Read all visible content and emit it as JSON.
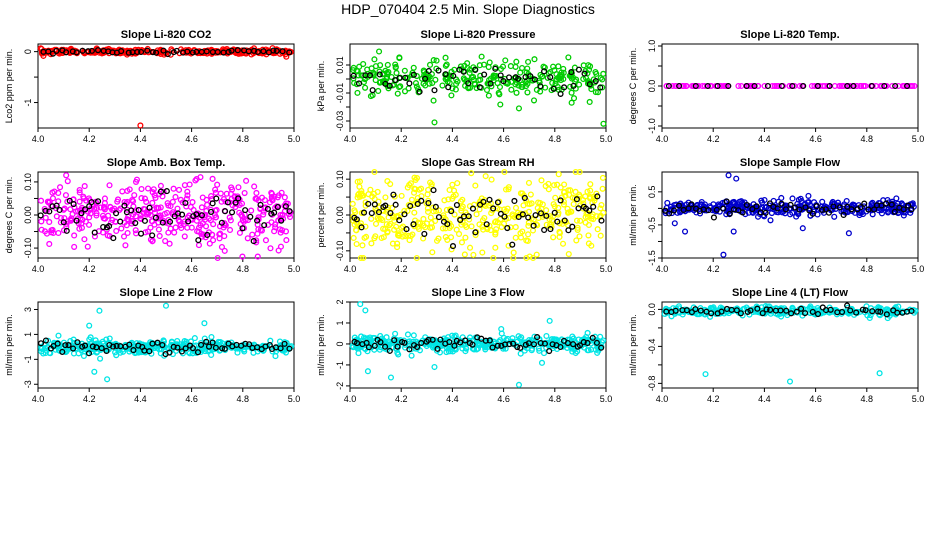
{
  "figure": {
    "title": "HDP_070404  2.5 Min. Slope Diagnostics"
  },
  "chart_data": [
    {
      "type": "scatter",
      "title": "Slope Li-820 CO2",
      "xlabel": "",
      "ylabel": "Lco2 ppm per min.",
      "xlim": [
        4.0,
        5.0
      ],
      "ylim": [
        -1.5,
        0.15
      ],
      "xticks": [
        4.0,
        4.2,
        4.4,
        4.6,
        4.8,
        5.0
      ],
      "xtick_labels": [
        "4.0",
        "4.2",
        "4.4",
        "4.6",
        "4.8",
        "5.0"
      ],
      "yticks": [
        -1,
        -0.5,
        0
      ],
      "ytick_labels": [
        "-1",
        "",
        "0"
      ],
      "color": "#ff0000",
      "pattern": {
        "center": 0.0,
        "spread": 0.03,
        "outliers": [
          [
            4.4,
            -1.45
          ],
          [
            4.05,
            -0.05
          ],
          [
            4.97,
            -0.1
          ]
        ],
        "n": 300
      },
      "overlay_color": "#000000"
    },
    {
      "type": "scatter",
      "title": "Slope Li-820 Pressure",
      "xlabel": "",
      "ylabel": "kPa per min.",
      "xlim": [
        4.0,
        5.0
      ],
      "ylim": [
        -0.035,
        0.025
      ],
      "xticks": [
        4.0,
        4.2,
        4.4,
        4.6,
        4.8,
        5.0
      ],
      "xtick_labels": [
        "4.0",
        "4.2",
        "4.4",
        "4.6",
        "4.8",
        "5.0"
      ],
      "yticks": [
        -0.03,
        -0.02,
        -0.01,
        0.0,
        0.01
      ],
      "ytick_labels": [
        "-0.03",
        "",
        "-0.01",
        "",
        "0.01"
      ],
      "color": "#00cc00",
      "pattern": {
        "center": 0.0,
        "spread": 0.008,
        "outliers": [
          [
            4.33,
            -0.031
          ],
          [
            4.66,
            -0.021
          ],
          [
            4.99,
            -0.032
          ]
        ],
        "n": 300
      },
      "overlay_color": "#000000"
    },
    {
      "type": "scatter",
      "title": "Slope Li-820 Temp.",
      "xlabel": "",
      "ylabel": "degrees C per min.",
      "xlim": [
        4.0,
        5.0
      ],
      "ylim": [
        -1.05,
        1.05
      ],
      "xticks": [
        4.0,
        4.2,
        4.4,
        4.6,
        4.8,
        5.0
      ],
      "xtick_labels": [
        "4.0",
        "4.2",
        "4.4",
        "4.6",
        "4.8",
        "5.0"
      ],
      "yticks": [
        -1.0,
        -0.5,
        0.0,
        0.5,
        1.0
      ],
      "ytick_labels": [
        "-1.0",
        "",
        "0.0",
        "",
        "1.0"
      ],
      "color": "#ff00ff",
      "pattern": {
        "center": 0.0,
        "spread": 0.0,
        "outliers": [],
        "n": 120
      },
      "overlay_color": "#000000"
    },
    {
      "type": "scatter",
      "title": "Slope Amb. Box Temp.",
      "xlabel": "",
      "ylabel": "degrees C per min.",
      "xlim": [
        4.0,
        5.0
      ],
      "ylim": [
        -0.13,
        0.13
      ],
      "xticks": [
        4.0,
        4.2,
        4.4,
        4.6,
        4.8,
        5.0
      ],
      "xtick_labels": [
        "4.0",
        "4.2",
        "4.4",
        "4.6",
        "4.8",
        "5.0"
      ],
      "yticks": [
        -0.1,
        -0.05,
        0.0,
        0.05,
        0.1
      ],
      "ytick_labels": [
        "-0.10",
        "",
        "0.00",
        "",
        "0.10"
      ],
      "color": "#ff00ff",
      "pattern": {
        "center": 0.0,
        "spread": 0.06,
        "outliers": [
          [
            4.11,
            0.12
          ]
        ],
        "n": 420
      },
      "overlay_color": "#000000"
    },
    {
      "type": "scatter",
      "title": "Slope Gas Stream RH",
      "xlabel": "",
      "ylabel": "percent per min.",
      "xlim": [
        4.0,
        5.0
      ],
      "ylim": [
        -0.12,
        0.12
      ],
      "xticks": [
        4.0,
        4.2,
        4.4,
        4.6,
        4.8,
        5.0
      ],
      "xtick_labels": [
        "4.0",
        "4.2",
        "4.4",
        "4.6",
        "4.8",
        "5.0"
      ],
      "yticks": [
        -0.1,
        -0.05,
        0.0,
        0.05,
        0.1
      ],
      "ytick_labels": [
        "-0.10",
        "",
        "0.00",
        "",
        "0.10"
      ],
      "color": "#ffff00",
      "pattern": {
        "center": 0.0,
        "spread": 0.065,
        "outliers": [],
        "n": 420
      },
      "overlay_color": "#000000"
    },
    {
      "type": "scatter",
      "title": "Slope Sample Flow",
      "xlabel": "",
      "ylabel": "ml/min per min.",
      "xlim": [
        4.0,
        5.0
      ],
      "ylim": [
        -1.5,
        1.1
      ],
      "xticks": [
        4.0,
        4.2,
        4.4,
        4.6,
        4.8,
        5.0
      ],
      "xtick_labels": [
        "4.0",
        "4.2",
        "4.4",
        "4.6",
        "4.8",
        "5.0"
      ],
      "yticks": [
        -1.5,
        -1.0,
        -0.5,
        0.0,
        0.5
      ],
      "ytick_labels": [
        "-1.5",
        "",
        "-0.5",
        "",
        "0.5"
      ],
      "color": "#0000cc",
      "pattern": {
        "center": 0.0,
        "spread": 0.15,
        "outliers": [
          [
            4.26,
            1.0
          ],
          [
            4.29,
            0.9
          ],
          [
            4.28,
            -0.7
          ],
          [
            4.73,
            -0.75
          ],
          [
            4.55,
            -0.6
          ],
          [
            4.05,
            -0.45
          ],
          [
            4.09,
            -0.7
          ],
          [
            4.24,
            -1.4
          ]
        ],
        "n": 350
      },
      "overlay_color": "#000000"
    },
    {
      "type": "scatter",
      "title": "Slope Line 2 Flow",
      "xlabel": "",
      "ylabel": "ml/min per min.",
      "xlim": [
        4.0,
        5.0
      ],
      "ylim": [
        -3.3,
        3.6
      ],
      "xticks": [
        4.0,
        4.2,
        4.4,
        4.6,
        4.8,
        5.0
      ],
      "xtick_labels": [
        "4.0",
        "4.2",
        "4.4",
        "4.6",
        "4.8",
        "5.0"
      ],
      "yticks": [
        -3,
        -1,
        1,
        3
      ],
      "ytick_labels": [
        "-3",
        "-1",
        "1",
        "3"
      ],
      "color": "#00e5e5",
      "pattern": {
        "center": 0.0,
        "spread": 0.35,
        "outliers": [
          [
            4.24,
            2.9
          ],
          [
            4.2,
            1.7
          ],
          [
            4.27,
            -2.6
          ],
          [
            4.5,
            3.3
          ],
          [
            4.65,
            1.9
          ],
          [
            4.22,
            -2.0
          ],
          [
            4.08,
            0.9
          ]
        ],
        "n": 380
      },
      "overlay_color": "#000000"
    },
    {
      "type": "scatter",
      "title": "Slope Line 3 Flow",
      "xlabel": "",
      "ylabel": "ml/min per min.",
      "xlim": [
        4.0,
        5.0
      ],
      "ylim": [
        -2.1,
        2.0
      ],
      "xticks": [
        4.0,
        4.2,
        4.4,
        4.6,
        4.8,
        5.0
      ],
      "xtick_labels": [
        "4.0",
        "4.2",
        "4.4",
        "4.6",
        "4.8",
        "5.0"
      ],
      "yticks": [
        -2,
        -1,
        0,
        1,
        2
      ],
      "ytick_labels": [
        "-2",
        "-1",
        "0",
        "1",
        "2"
      ],
      "color": "#00e5e5",
      "pattern": {
        "center": 0.0,
        "spread": 0.25,
        "outliers": [
          [
            4.04,
            1.9
          ],
          [
            4.06,
            1.6
          ],
          [
            4.07,
            -1.3
          ],
          [
            4.16,
            -1.6
          ],
          [
            4.33,
            -1.1
          ],
          [
            4.66,
            -1.95
          ],
          [
            4.78,
            1.1
          ],
          [
            4.75,
            -0.9
          ]
        ],
        "n": 380
      },
      "overlay_color": "#000000"
    },
    {
      "type": "scatter",
      "title": "Slope Line 4 (LT) Flow",
      "xlabel": "",
      "ylabel": "ml/min per min.",
      "xlim": [
        4.0,
        5.0
      ],
      "ylim": [
        -0.85,
        0.08
      ],
      "xticks": [
        4.0,
        4.2,
        4.4,
        4.6,
        4.8,
        5.0
      ],
      "xtick_labels": [
        "4.0",
        "4.2",
        "4.4",
        "4.6",
        "4.8",
        "5.0"
      ],
      "yticks": [
        -0.8,
        -0.6,
        -0.4,
        -0.2,
        0.0
      ],
      "ytick_labels": [
        "-0.8",
        "",
        "-0.4",
        "",
        "0.0"
      ],
      "color": "#00e5e5",
      "pattern": {
        "center": -0.02,
        "spread": 0.03,
        "outliers": [
          [
            4.17,
            -0.7
          ],
          [
            4.5,
            -0.78
          ],
          [
            4.85,
            -0.69
          ]
        ],
        "n": 300
      },
      "overlay_color": "#000000"
    }
  ]
}
